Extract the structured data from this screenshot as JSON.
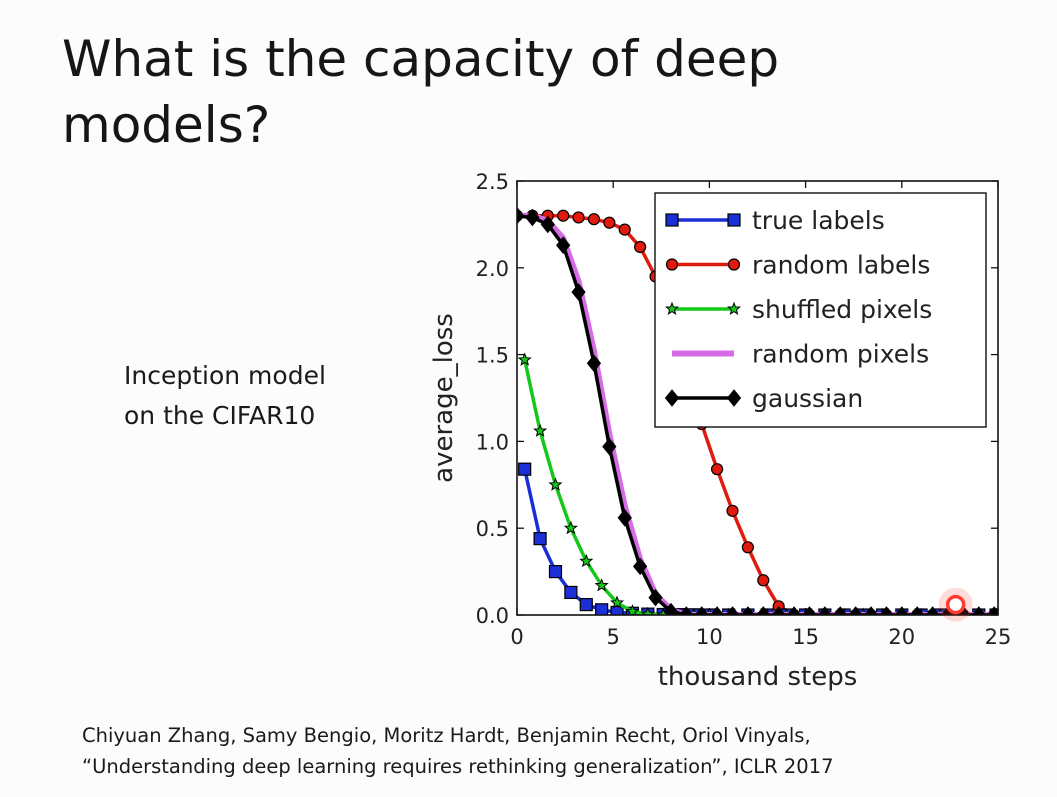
{
  "slide": {
    "title": "What is the capacity of deep models?",
    "note_lines": [
      "Inception model",
      "on the CIFAR10"
    ],
    "citation_lines": [
      "Chiyuan Zhang, Samy Bengio, Moritz Hardt, Benjamin Recht, Oriol Vinyals,",
      "“Understanding deep learning requires rethinking generalization”, ICLR 2017"
    ]
  },
  "chart_data": {
    "type": "line",
    "xlabel": "thousand steps",
    "ylabel": "average_loss",
    "xlim": [
      0,
      25
    ],
    "ylim": [
      0.0,
      2.5
    ],
    "xticks": [
      "0",
      "5",
      "10",
      "15",
      "20",
      "25"
    ],
    "yticks": [
      "0.0",
      "0.5",
      "1.0",
      "1.5",
      "2.0",
      "2.5"
    ],
    "grid": false,
    "legend_position": "top-right",
    "series": [
      {
        "name": "true labels",
        "color": "#1a2fd6",
        "marker": "square",
        "x": [
          0.4,
          1.2,
          2.0,
          2.8,
          3.6,
          4.4,
          5.2,
          6.0,
          6.8,
          7.6,
          8.4,
          9.2,
          10.0,
          11.0,
          12.0,
          13.0,
          14.0,
          15.0,
          16.0,
          17.0,
          18.0,
          19.0,
          20.0,
          21.0,
          22.0,
          23.0,
          24.0,
          24.9
        ],
        "y": [
          0.84,
          0.44,
          0.25,
          0.13,
          0.06,
          0.03,
          0.015,
          0.01,
          0.005,
          0.003,
          0.002,
          0.001,
          0,
          0,
          0,
          0,
          0,
          0,
          0,
          0,
          0,
          0,
          0,
          0,
          0,
          0,
          0,
          0
        ]
      },
      {
        "name": "random labels",
        "color": "#e01a0e",
        "marker": "circle",
        "x": [
          0,
          0.8,
          1.6,
          2.4,
          3.2,
          4.0,
          4.8,
          5.6,
          6.4,
          7.2,
          8.0,
          8.8,
          9.6,
          10.4,
          11.2,
          12.0,
          12.8,
          13.6,
          14.4,
          15.2,
          16.0,
          16.8,
          17.6,
          18.4,
          19.2,
          20.0,
          20.8,
          21.6,
          22.4,
          23.2,
          24.0,
          24.8
        ],
        "y": [
          2.3,
          2.3,
          2.3,
          2.3,
          2.29,
          2.28,
          2.26,
          2.22,
          2.12,
          1.95,
          1.7,
          1.4,
          1.1,
          0.84,
          0.6,
          0.39,
          0.2,
          0.05,
          0,
          0,
          0,
          0,
          0,
          0,
          0,
          0,
          0,
          0,
          0,
          0,
          0,
          0
        ]
      },
      {
        "name": "shuffled pixels",
        "color": "#14c81a",
        "marker": "star",
        "x": [
          0.4,
          1.2,
          2.0,
          2.8,
          3.6,
          4.4,
          5.2,
          6.0,
          6.8,
          7.6,
          8.4,
          9.2,
          10.0,
          11.0,
          12.0,
          13.0,
          14.0,
          15.0,
          16.0,
          17.0,
          18.0,
          19.0,
          20.0,
          21.0,
          22.0,
          23.0,
          24.0,
          24.9
        ],
        "y": [
          1.47,
          1.06,
          0.75,
          0.5,
          0.31,
          0.17,
          0.07,
          0.02,
          0.005,
          0,
          0,
          0,
          0,
          0,
          0,
          0,
          0,
          0,
          0,
          0,
          0,
          0,
          0,
          0,
          0,
          0,
          0,
          0
        ]
      },
      {
        "name": "random pixels",
        "color": "#d66be6",
        "marker": "none",
        "x": [
          0,
          0.8,
          1.6,
          2.4,
          3.2,
          4.0,
          4.8,
          5.6,
          6.4,
          7.2,
          8.0,
          8.8,
          10,
          12,
          14,
          16,
          18,
          20,
          22,
          24,
          25
        ],
        "y": [
          2.3,
          2.3,
          2.27,
          2.17,
          1.92,
          1.52,
          1.04,
          0.63,
          0.32,
          0.12,
          0.03,
          0,
          0,
          0,
          0,
          0,
          0,
          0,
          0,
          0,
          0
        ]
      },
      {
        "name": "gaussian",
        "color": "#000000",
        "marker": "diamond",
        "x": [
          0,
          0.8,
          1.6,
          2.4,
          3.2,
          4.0,
          4.8,
          5.6,
          6.4,
          7.2,
          8.0,
          8.8,
          9.6,
          10.4,
          11.2,
          12.0,
          12.8,
          13.6,
          14.4,
          15.2,
          16.0,
          16.8,
          17.6,
          18.4,
          19.2,
          20.0,
          20.8,
          21.6,
          22.4,
          23.2,
          24.0,
          24.8
        ],
        "y": [
          2.3,
          2.29,
          2.25,
          2.13,
          1.86,
          1.45,
          0.97,
          0.56,
          0.28,
          0.1,
          0.02,
          0,
          0,
          0,
          0,
          0,
          0,
          0,
          0,
          0,
          0,
          0,
          0,
          0,
          0,
          0,
          0,
          0,
          0,
          0,
          0,
          0
        ]
      }
    ],
    "annotation": {
      "kind": "pointer-highlight",
      "x": 22.8,
      "y": 0.06,
      "color": "#ff3b2f"
    }
  }
}
